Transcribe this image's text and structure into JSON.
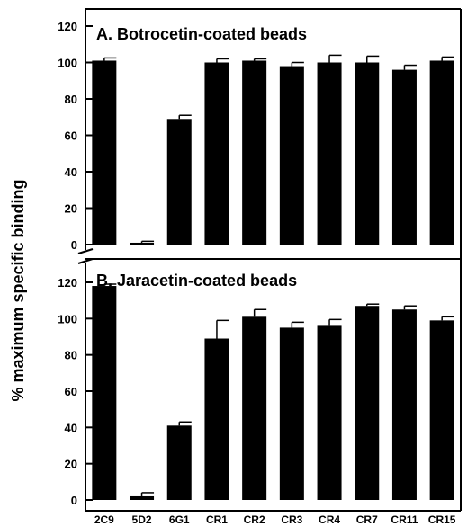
{
  "chart_data": {
    "type": "bar",
    "ylabel": "% maximum specific binding",
    "categories": [
      "2C9",
      "5D2",
      "6G1",
      "CR1",
      "CR2",
      "CR3",
      "CR4",
      "CR7",
      "CR11",
      "CR15"
    ],
    "panels": [
      {
        "title": "A. Botrocetin-coated beads",
        "ylim": [
          0,
          120
        ],
        "yticks": [
          "0",
          "20",
          "40",
          "60",
          "80",
          "100",
          "120"
        ],
        "values": [
          101,
          1,
          69,
          100,
          101,
          98,
          100,
          100,
          96,
          101
        ],
        "errors": [
          1.5,
          0.8,
          2,
          2,
          1,
          2,
          4,
          3.5,
          2.5,
          2
        ]
      },
      {
        "title": "B. Jaracetin-coated beads",
        "ylim": [
          0,
          120
        ],
        "yticks": [
          "0",
          "20",
          "40",
          "60",
          "80",
          "100",
          "120"
        ],
        "values": [
          118,
          2,
          41,
          89,
          101,
          95,
          96,
          107,
          105,
          99
        ],
        "errors": [
          1,
          2,
          2,
          10,
          4,
          3,
          3.5,
          1,
          2,
          2
        ]
      }
    ],
    "bar_color": "#000000",
    "grid": false,
    "legend": "none"
  }
}
